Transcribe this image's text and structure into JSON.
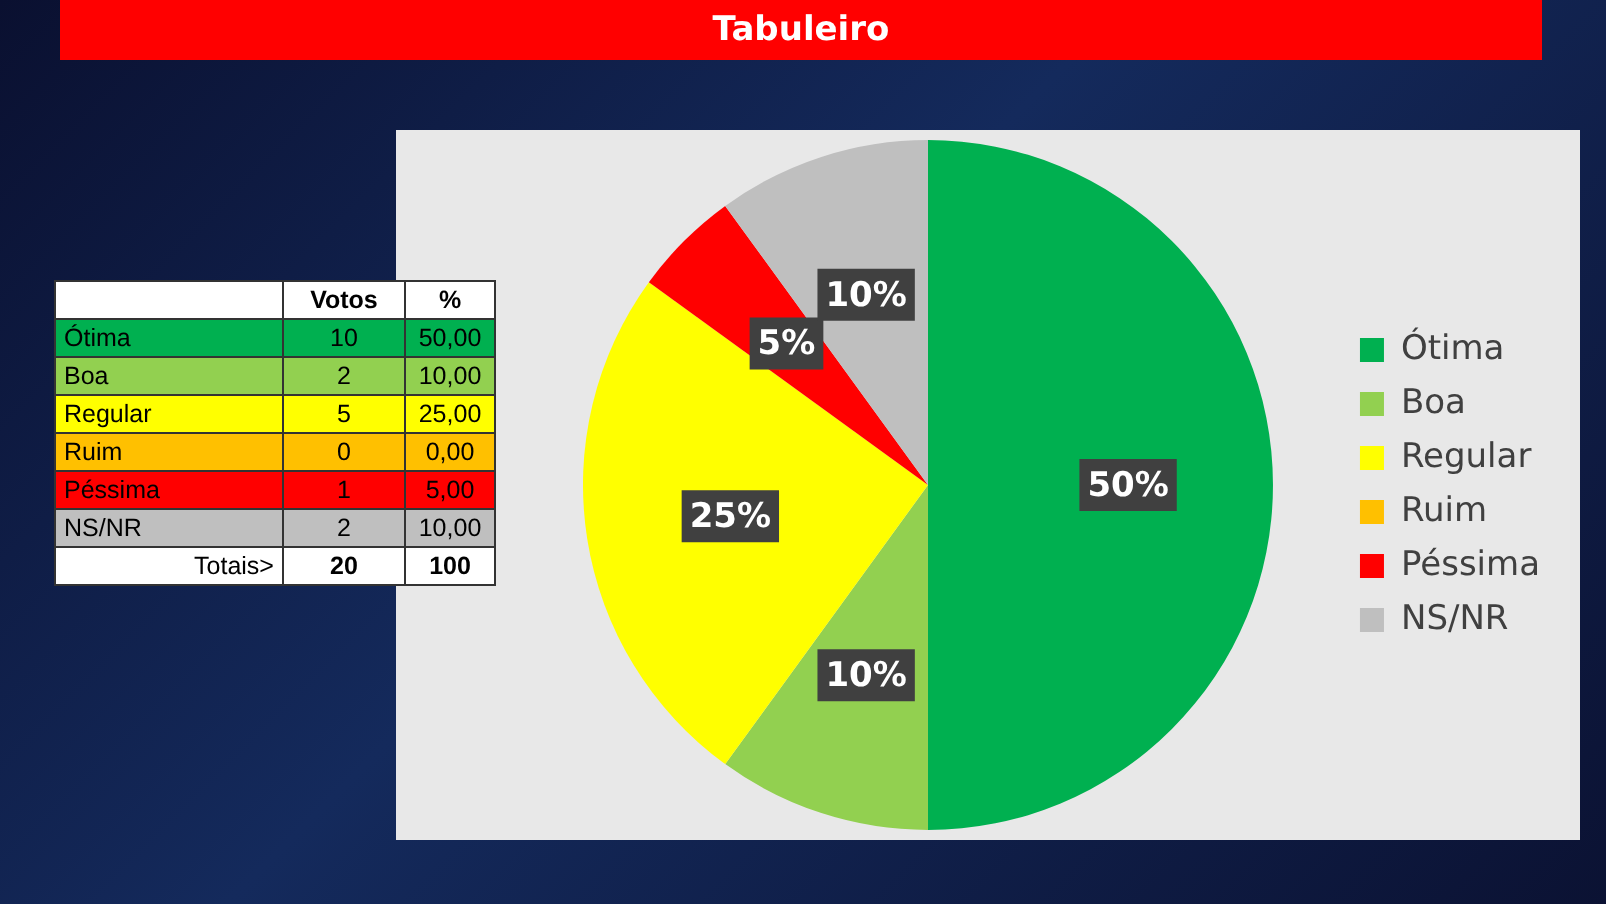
{
  "chart_data": [
    {
      "type": "pie",
      "title": "Tabuleiro",
      "categories": [
        "Ótima",
        "Boa",
        "Regular",
        "Ruim",
        "Péssima",
        "NS/NR"
      ],
      "values": [
        50,
        10,
        25,
        0,
        5,
        10
      ],
      "colors": [
        "#00b050",
        "#92d050",
        "#ffff00",
        "#ffc000",
        "#ff0000",
        "#bfbfbf"
      ],
      "value_labels": [
        "50%",
        "10%",
        "25%",
        null,
        "5%",
        "10%"
      ],
      "legend": "right"
    },
    {
      "type": "other",
      "categories": [
        "Ótima",
        "Boa",
        "Regular",
        "Ruim",
        "Péssima",
        "NS/NR"
      ],
      "colors": [
        "#00b050",
        "#92d050",
        "#ffff00",
        "#ffc000",
        "#ff0000",
        "#bfbfbf"
      ],
      "series": [
        {
          "name": "Votos",
          "values": [
            10,
            2,
            5,
            0,
            1,
            2
          ],
          "colors": [
            "#00b050",
            "#92d050",
            "#ffff00",
            "#ffc000",
            "#ff0000",
            "#bfbfbf"
          ]
        },
        {
          "name": "%",
          "values": [
            50,
            10,
            25,
            0,
            5,
            10
          ],
          "value_labels": [
            "50,00",
            "10,00",
            "25,00",
            "0,00",
            "5,00",
            "10,00"
          ],
          "colors": [
            "#00b050",
            "#92d050",
            "#ffff00",
            "#ffc000",
            "#ff0000",
            "#bfbfbf"
          ]
        }
      ],
      "data_labels": true,
      "annotations": [
        "Totais>"
      ],
      "totals": [
        "20",
        "100"
      ]
    }
  ]
}
